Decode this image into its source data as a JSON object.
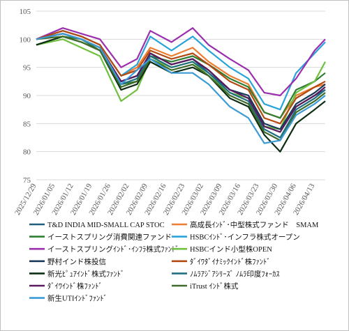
{
  "chart_data": {
    "type": "line",
    "title": "",
    "xlabel": "",
    "ylabel": "",
    "ylim": [
      75,
      105
    ],
    "yticks": [
      75,
      80,
      85,
      90,
      95,
      100,
      105
    ],
    "grid": "horizontal",
    "legend_position": "bottom",
    "xtick_labels": [
      "2025/12/29",
      "2026/01/05",
      "2026/01/12",
      "2026/01/19",
      "2026/01/26",
      "2026/02/02",
      "2026/02/09",
      "2026/02/16",
      "2026/02/23",
      "2026/03/02",
      "2026/03/09",
      "2026/03/16",
      "2026/03/23",
      "2026/03/30",
      "2026/04/06",
      "2026/04/13"
    ],
    "x_start": "2025/12/29",
    "x_end": "2026/04/17",
    "series": [
      {
        "name": "T&D INDIA MID-SMALL CAP STOC",
        "color": "#1f5f7a",
        "points": [
          [
            "2025/12/29",
            100
          ],
          [
            "2026/01/08",
            101
          ],
          [
            "2026/01/15",
            100
          ],
          [
            "2026/01/22",
            98.5
          ],
          [
            "2026/01/30",
            92.5
          ],
          [
            "2026/02/05",
            93.5
          ],
          [
            "2026/02/10",
            97.5
          ],
          [
            "2026/02/18",
            95.5
          ],
          [
            "2026/02/26",
            96.5
          ],
          [
            "2026/03/04",
            94
          ],
          [
            "2026/03/12",
            91
          ],
          [
            "2026/03/19",
            90
          ],
          [
            "2026/03/25",
            84.5
          ],
          [
            "2026/03/31",
            84
          ],
          [
            "2026/04/06",
            88
          ],
          [
            "2026/04/13",
            90
          ],
          [
            "2026/04/17",
            91
          ]
        ]
      },
      {
        "name": "高成長ｲﾝﾄﾞ･中型株式ファンド　SMAM",
        "color": "#ed7d31",
        "points": [
          [
            "2025/12/29",
            100
          ],
          [
            "2026/01/08",
            101.5
          ],
          [
            "2026/01/15",
            100.5
          ],
          [
            "2026/01/22",
            99
          ],
          [
            "2026/01/30",
            93.5
          ],
          [
            "2026/02/05",
            95
          ],
          [
            "2026/02/10",
            98.5
          ],
          [
            "2026/02/18",
            97
          ],
          [
            "2026/02/26",
            98.5
          ],
          [
            "2026/03/04",
            96
          ],
          [
            "2026/03/12",
            93.5
          ],
          [
            "2026/03/19",
            92
          ],
          [
            "2026/03/25",
            87
          ],
          [
            "2026/03/31",
            86
          ],
          [
            "2026/04/06",
            90
          ],
          [
            "2026/04/13",
            91.5
          ],
          [
            "2026/04/17",
            92
          ]
        ]
      },
      {
        "name": "イーストスプリング消費関連ファンド",
        "color": "#2e7d32",
        "points": [
          [
            "2025/12/29",
            99
          ],
          [
            "2026/01/08",
            100.5
          ],
          [
            "2026/01/15",
            100
          ],
          [
            "2026/01/22",
            98
          ],
          [
            "2026/01/30",
            92
          ],
          [
            "2026/02/05",
            92.5
          ],
          [
            "2026/02/10",
            97
          ],
          [
            "2026/02/18",
            96
          ],
          [
            "2026/02/26",
            97
          ],
          [
            "2026/03/04",
            95.5
          ],
          [
            "2026/03/12",
            93
          ],
          [
            "2026/03/19",
            91.5
          ],
          [
            "2026/03/25",
            87
          ],
          [
            "2026/03/31",
            86
          ],
          [
            "2026/04/06",
            91
          ],
          [
            "2026/04/13",
            92.5
          ],
          [
            "2026/04/17",
            94
          ]
        ]
      },
      {
        "name": "HSBCｲﾝﾄﾞ･インフラ株式オープン",
        "color": "#29a3da",
        "points": [
          [
            "2025/12/29",
            100
          ],
          [
            "2026/01/08",
            101.5
          ],
          [
            "2026/01/15",
            100.5
          ],
          [
            "2026/01/22",
            99
          ],
          [
            "2026/01/30",
            93.5
          ],
          [
            "2026/02/05",
            95.5
          ],
          [
            "2026/02/10",
            100.5
          ],
          [
            "2026/02/18",
            98
          ],
          [
            "2026/02/26",
            100.5
          ],
          [
            "2026/03/04",
            98
          ],
          [
            "2026/03/12",
            95
          ],
          [
            "2026/03/19",
            93
          ],
          [
            "2026/03/25",
            88.5
          ],
          [
            "2026/03/31",
            87.5
          ],
          [
            "2026/04/06",
            94
          ],
          [
            "2026/04/13",
            97.5
          ],
          [
            "2026/04/17",
            99.5
          ]
        ]
      },
      {
        "name": "イーストスプリングｲﾝﾄﾞ･ｲﾝﾌﾗ株式ﾌｧﾝﾄﾞ",
        "color": "#9b2fae",
        "points": [
          [
            "2025/12/29",
            100
          ],
          [
            "2026/01/08",
            102
          ],
          [
            "2026/01/15",
            101
          ],
          [
            "2026/01/22",
            100
          ],
          [
            "2026/01/30",
            95
          ],
          [
            "2026/02/05",
            96.5
          ],
          [
            "2026/02/10",
            101.5
          ],
          [
            "2026/02/18",
            99.5
          ],
          [
            "2026/02/26",
            102
          ],
          [
            "2026/03/04",
            99
          ],
          [
            "2026/03/12",
            96.5
          ],
          [
            "2026/03/19",
            94.5
          ],
          [
            "2026/03/25",
            90.5
          ],
          [
            "2026/03/31",
            90
          ],
          [
            "2026/04/06",
            93
          ],
          [
            "2026/04/13",
            98
          ],
          [
            "2026/04/17",
            100
          ]
        ]
      },
      {
        "name": "HSBCインド小型株OPEN",
        "color": "#70c040",
        "points": [
          [
            "2025/12/29",
            99
          ],
          [
            "2026/01/08",
            100
          ],
          [
            "2026/01/15",
            98.5
          ],
          [
            "2026/01/22",
            97
          ],
          [
            "2026/01/30",
            89
          ],
          [
            "2026/02/05",
            91
          ],
          [
            "2026/02/10",
            96.5
          ],
          [
            "2026/02/18",
            95
          ],
          [
            "2026/02/26",
            96
          ],
          [
            "2026/03/04",
            93.5
          ],
          [
            "2026/03/12",
            90.5
          ],
          [
            "2026/03/19",
            89.5
          ],
          [
            "2026/03/25",
            84.5
          ],
          [
            "2026/03/31",
            84
          ],
          [
            "2026/04/06",
            90.5
          ],
          [
            "2026/04/13",
            92.5
          ],
          [
            "2026/04/17",
            96
          ]
        ]
      },
      {
        "name": "野村インド株投信",
        "color": "#1a3a5a",
        "points": [
          [
            "2025/12/29",
            100
          ],
          [
            "2026/01/08",
            101
          ],
          [
            "2026/01/15",
            100
          ],
          [
            "2026/01/22",
            98.5
          ],
          [
            "2026/01/30",
            92.5
          ],
          [
            "2026/02/05",
            93.5
          ],
          [
            "2026/02/10",
            97.5
          ],
          [
            "2026/02/18",
            95.5
          ],
          [
            "2026/02/26",
            96.5
          ],
          [
            "2026/03/04",
            94.5
          ],
          [
            "2026/03/12",
            91
          ],
          [
            "2026/03/19",
            90
          ],
          [
            "2026/03/25",
            85
          ],
          [
            "2026/03/31",
            84
          ],
          [
            "2026/04/06",
            88.5
          ],
          [
            "2026/04/13",
            90.5
          ],
          [
            "2026/04/17",
            92
          ]
        ]
      },
      {
        "name": "ﾀﾞｲﾜﾀﾞｲﾅﾐｯｸｲﾝﾄﾞ株ﾌｧﾝﾄﾞ",
        "color": "#b24a12",
        "points": [
          [
            "2025/12/29",
            100
          ],
          [
            "2026/01/08",
            101.5
          ],
          [
            "2026/01/15",
            100.5
          ],
          [
            "2026/01/22",
            99
          ],
          [
            "2026/01/30",
            93.5
          ],
          [
            "2026/02/05",
            94.5
          ],
          [
            "2026/02/10",
            98
          ],
          [
            "2026/02/18",
            96.5
          ],
          [
            "2026/02/26",
            97.5
          ],
          [
            "2026/03/04",
            95.5
          ],
          [
            "2026/03/12",
            92.5
          ],
          [
            "2026/03/19",
            91
          ],
          [
            "2026/03/25",
            86
          ],
          [
            "2026/03/31",
            85
          ],
          [
            "2026/04/06",
            89.5
          ],
          [
            "2026/04/13",
            91.5
          ],
          [
            "2026/04/17",
            92.5
          ]
        ]
      },
      {
        "name": "新光ﾋﾟｭｱｲﾝﾄﾞ株式ﾌｧﾝﾄﾞ",
        "color": "#0d2e12",
        "points": [
          [
            "2025/12/29",
            99
          ],
          [
            "2026/01/08",
            100.5
          ],
          [
            "2026/01/15",
            99.5
          ],
          [
            "2026/01/22",
            98
          ],
          [
            "2026/01/30",
            91
          ],
          [
            "2026/02/05",
            92
          ],
          [
            "2026/02/10",
            96
          ],
          [
            "2026/02/18",
            94
          ],
          [
            "2026/02/26",
            95
          ],
          [
            "2026/03/04",
            93.5
          ],
          [
            "2026/03/12",
            89.5
          ],
          [
            "2026/03/19",
            88
          ],
          [
            "2026/03/25",
            83
          ],
          [
            "2026/03/31",
            80
          ],
          [
            "2026/04/06",
            85
          ],
          [
            "2026/04/13",
            87.5
          ],
          [
            "2026/04/17",
            89
          ]
        ]
      },
      {
        "name": "ﾉﾑﾗｱｼﾞｱｼﾘｰｽﾞ ﾉﾑﾗ印度ﾌｫｰｶｽ",
        "color": "#1f6f80",
        "points": [
          [
            "2025/12/29",
            100
          ],
          [
            "2026/01/08",
            101
          ],
          [
            "2026/01/15",
            100
          ],
          [
            "2026/01/22",
            98.5
          ],
          [
            "2026/01/30",
            92
          ],
          [
            "2026/02/05",
            93
          ],
          [
            "2026/02/10",
            97
          ],
          [
            "2026/02/18",
            95
          ],
          [
            "2026/02/26",
            96
          ],
          [
            "2026/03/04",
            94
          ],
          [
            "2026/03/12",
            90.5
          ],
          [
            "2026/03/19",
            89
          ],
          [
            "2026/03/25",
            84
          ],
          [
            "2026/03/31",
            82.5
          ],
          [
            "2026/04/06",
            87.5
          ],
          [
            "2026/04/13",
            89.5
          ],
          [
            "2026/04/17",
            91
          ]
        ]
      },
      {
        "name": "ﾀﾞｲﾜｲﾝﾄﾞ株ﾌｧﾝﾄﾞ",
        "color": "#5a1a5e",
        "points": [
          [
            "2025/12/29",
            100
          ],
          [
            "2026/01/08",
            101
          ],
          [
            "2026/01/15",
            100
          ],
          [
            "2026/01/22",
            98.5
          ],
          [
            "2026/01/30",
            92.5
          ],
          [
            "2026/02/05",
            93.5
          ],
          [
            "2026/02/10",
            97.5
          ],
          [
            "2026/02/18",
            95.5
          ],
          [
            "2026/02/26",
            96.5
          ],
          [
            "2026/03/04",
            94.5
          ],
          [
            "2026/03/12",
            91
          ],
          [
            "2026/03/19",
            89.5
          ],
          [
            "2026/03/25",
            84.5
          ],
          [
            "2026/03/31",
            83.5
          ],
          [
            "2026/04/06",
            88
          ],
          [
            "2026/04/13",
            90
          ],
          [
            "2026/04/17",
            91.5
          ]
        ]
      },
      {
        "name": "iTrust ｲﾝﾄﾞ株式",
        "color": "#3e6b2a",
        "points": [
          [
            "2025/12/29",
            100
          ],
          [
            "2026/01/08",
            100.5
          ],
          [
            "2026/01/15",
            99.5
          ],
          [
            "2026/01/22",
            98
          ],
          [
            "2026/01/30",
            91.5
          ],
          [
            "2026/02/05",
            92.5
          ],
          [
            "2026/02/10",
            96.5
          ],
          [
            "2026/02/18",
            94.5
          ],
          [
            "2026/02/26",
            95.5
          ],
          [
            "2026/03/04",
            93.5
          ],
          [
            "2026/03/12",
            90
          ],
          [
            "2026/03/19",
            88.5
          ],
          [
            "2026/03/25",
            83.5
          ],
          [
            "2026/03/31",
            82
          ],
          [
            "2026/04/06",
            87
          ],
          [
            "2026/04/13",
            89
          ],
          [
            "2026/04/17",
            90.5
          ]
        ]
      },
      {
        "name": "新生UTIｲﾝﾄﾞﾌｧﾝﾄﾞ",
        "color": "#3b9bd6",
        "points": [
          [
            "2025/12/29",
            100
          ],
          [
            "2026/01/08",
            101
          ],
          [
            "2026/01/15",
            100
          ],
          [
            "2026/01/22",
            98.5
          ],
          [
            "2026/01/30",
            92
          ],
          [
            "2026/02/05",
            94.5
          ],
          [
            "2026/02/10",
            96.5
          ],
          [
            "2026/02/18",
            94
          ],
          [
            "2026/02/26",
            94
          ],
          [
            "2026/03/04",
            92
          ],
          [
            "2026/03/12",
            88
          ],
          [
            "2026/03/19",
            86
          ],
          [
            "2026/03/25",
            81.5
          ],
          [
            "2026/03/31",
            82
          ],
          [
            "2026/04/06",
            86.5
          ],
          [
            "2026/04/13",
            88.5
          ],
          [
            "2026/04/17",
            90
          ]
        ]
      }
    ]
  }
}
